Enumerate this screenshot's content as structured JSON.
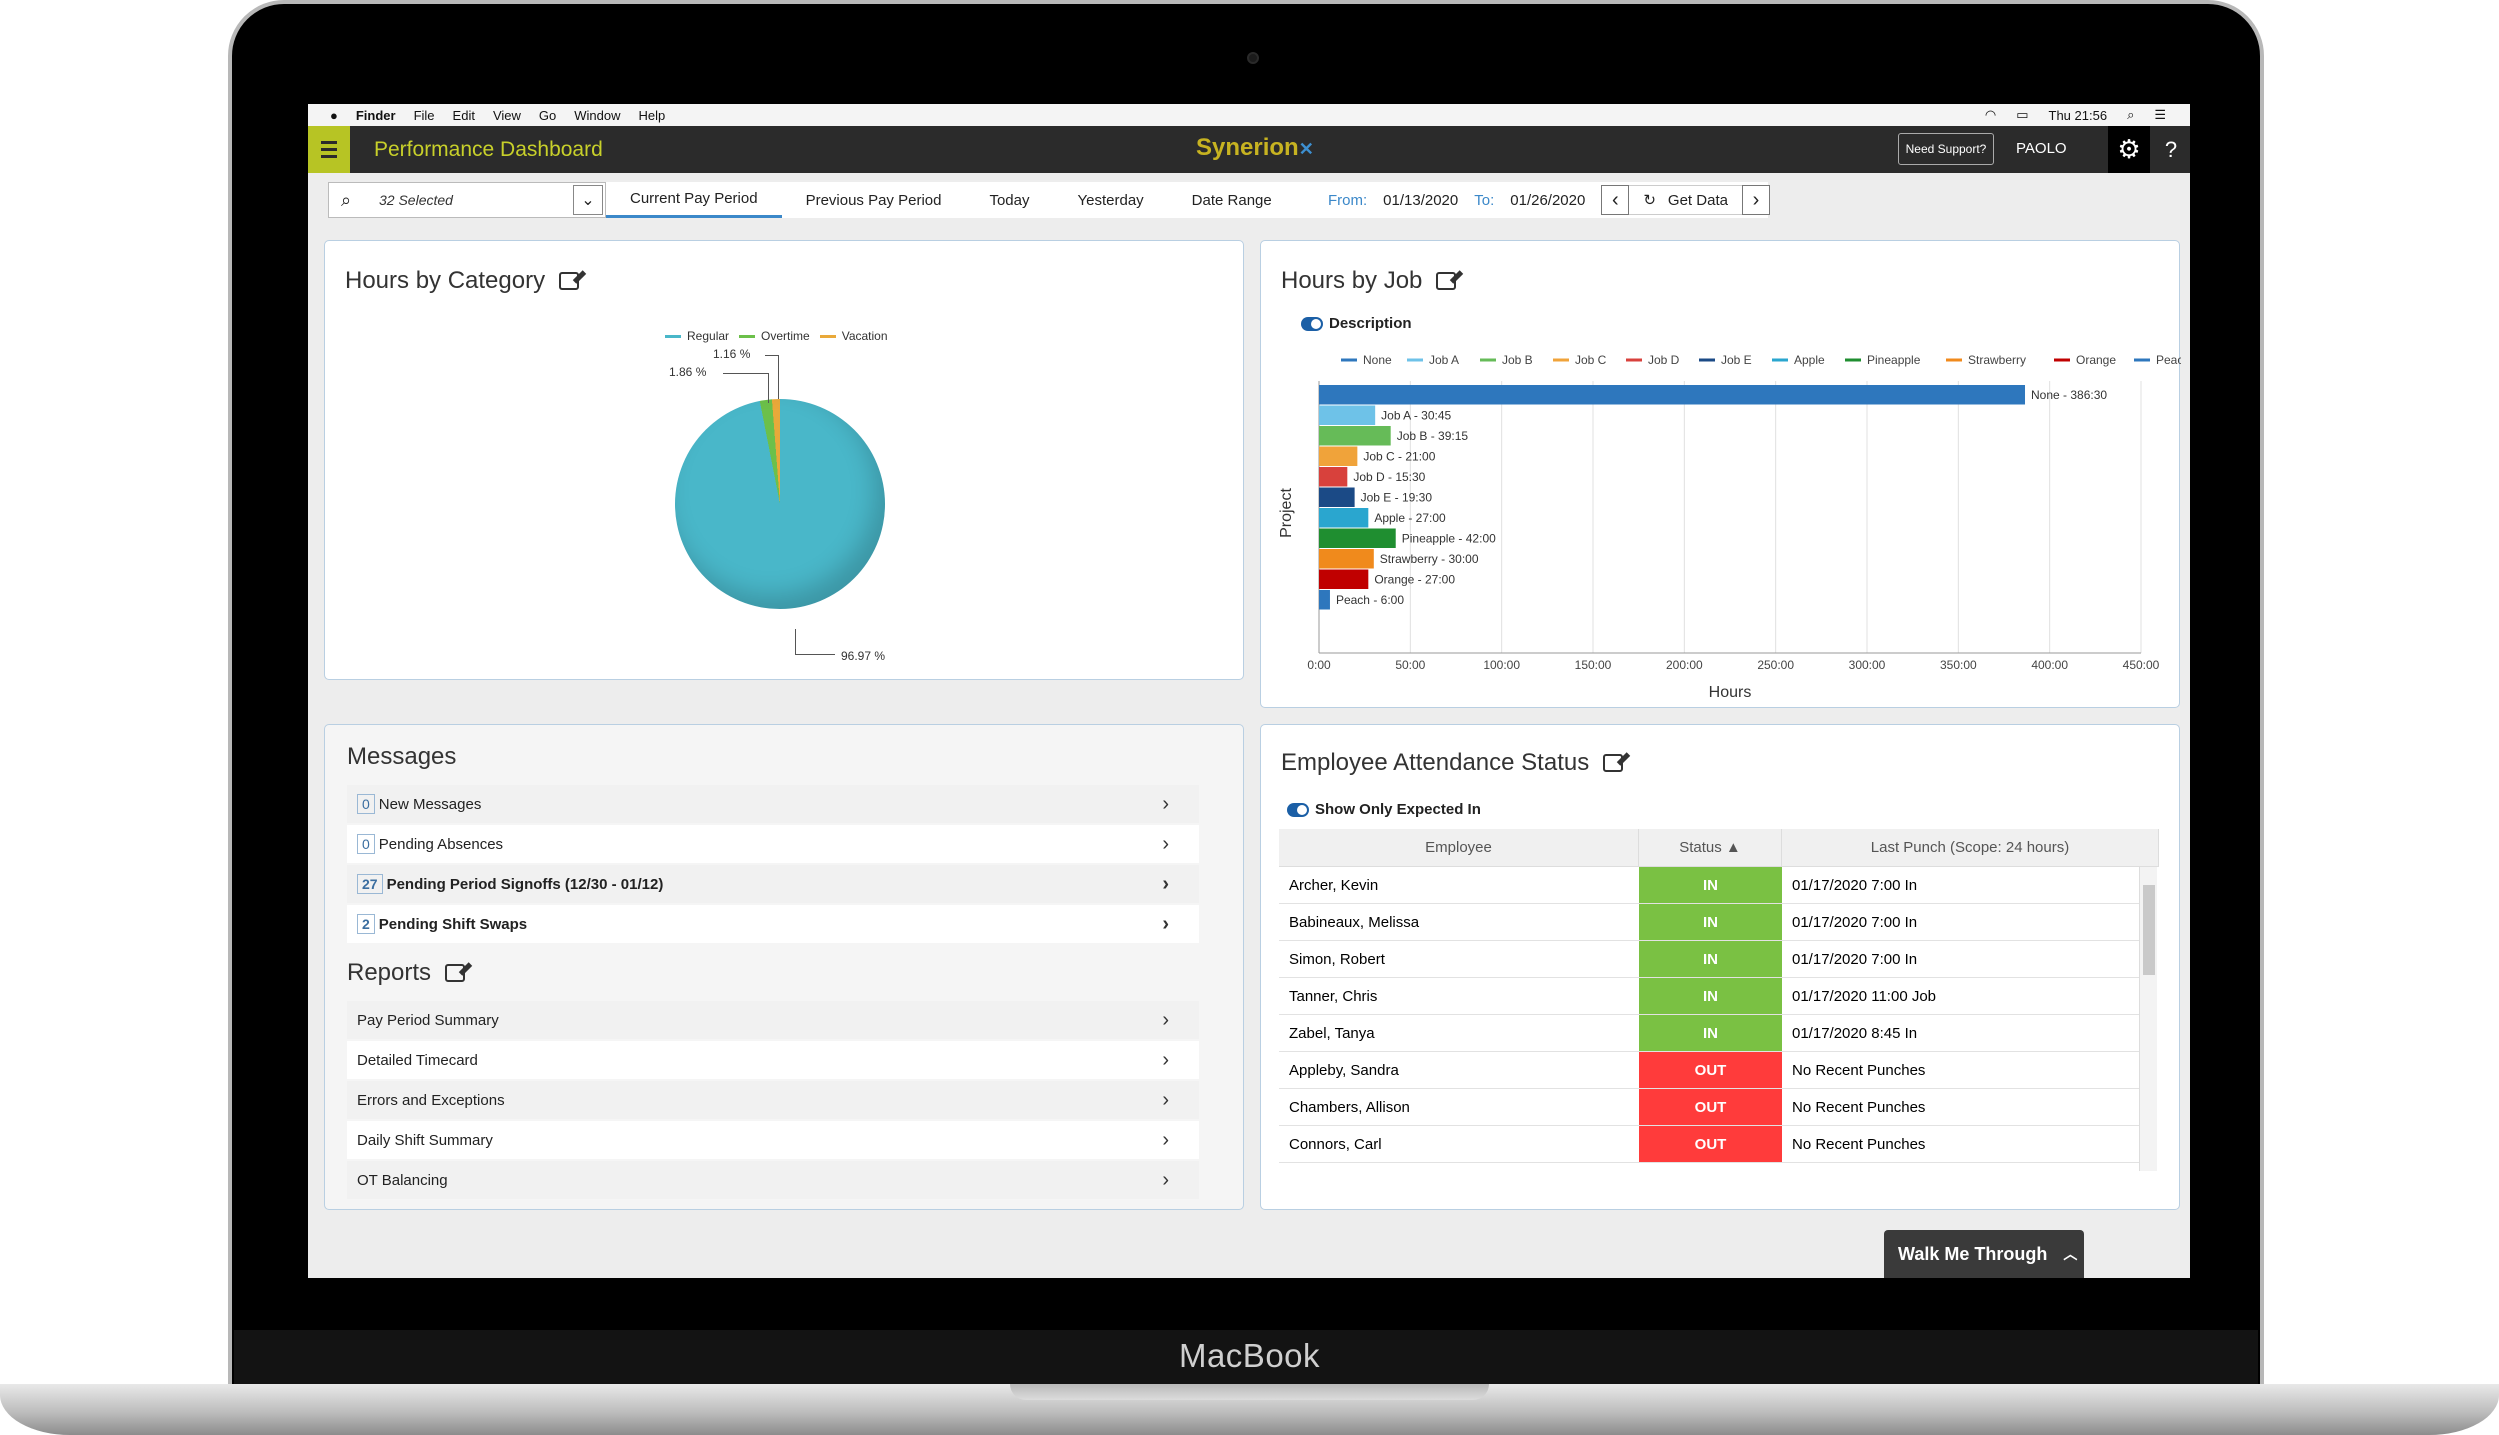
{
  "device": {
    "brand": "MacBook"
  },
  "mac_menu": {
    "apple": "",
    "items": [
      "Finder",
      "File",
      "Edit",
      "View",
      "Go",
      "Window",
      "Help"
    ],
    "clock": "Thu 21:56"
  },
  "app": {
    "title": "Performance Dashboard",
    "logo": "Synerion",
    "support": "Need Support?",
    "user": "PAOLO",
    "help": "?"
  },
  "filter": {
    "selected": "32 Selected",
    "tabs": [
      "Current Pay Period",
      "Previous Pay Period",
      "Today",
      "Yesterday",
      "Date Range"
    ],
    "from_label": "From:",
    "from": "01/13/2020",
    "to_label": "To:",
    "to": "01/26/2020",
    "get_data": "Get Data"
  },
  "hours_by_category": {
    "title": "Hours by Category",
    "legend": [
      {
        "name": "Regular",
        "color": "#49b7c9"
      },
      {
        "name": "Overtime",
        "color": "#6cc04a"
      },
      {
        "name": "Vacation",
        "color": "#e9a93a"
      }
    ],
    "labels": {
      "overtime": "1.16 %",
      "vacation": "1.86 %",
      "regular": "96.97 %"
    }
  },
  "hours_by_job": {
    "title": "Hours by Job",
    "toggle_label": "Description",
    "y_label": "Project",
    "x_label": "Hours"
  },
  "chart_data": {
    "type": "bar",
    "orientation": "horizontal",
    "categories": [
      "None",
      "Job A",
      "Job B",
      "Job C",
      "Job D",
      "Job E",
      "Apple",
      "Pineapple",
      "Strawberry",
      "Orange",
      "Peach"
    ],
    "values": [
      386.5,
      30.75,
      39.25,
      21,
      15.5,
      19.5,
      27,
      42,
      30,
      27,
      6
    ],
    "data_labels": [
      "None - 386:30",
      "Job A - 30:45",
      "Job B - 39:15",
      "Job C - 21:00",
      "Job D - 15:30",
      "Job E - 19:30",
      "Apple - 27:00",
      "Pineapple - 42:00",
      "Strawberry - 30:00",
      "Orange - 27:00",
      "Peach - 6:00"
    ],
    "colors": [
      "#2e77bd",
      "#6ec2e8",
      "#66bb58",
      "#f0a33a",
      "#d8413c",
      "#1b4a86",
      "#2aa6cf",
      "#1f8e30",
      "#f08a1c",
      "#c00000",
      "#2e77bd"
    ],
    "xticks": [
      "0:00",
      "50:00",
      "100:00",
      "150:00",
      "200:00",
      "250:00",
      "300:00",
      "350:00",
      "400:00",
      "450:00"
    ],
    "xlim": [
      0,
      450
    ],
    "xlabel": "Hours",
    "ylabel": "Project",
    "legend_position": "top",
    "grid": true
  },
  "messages": {
    "title": "Messages",
    "items": [
      {
        "count": "0",
        "label": "New Messages"
      },
      {
        "count": "0",
        "label": "Pending Absences"
      },
      {
        "count": "27",
        "label": "Pending Period Signoffs (12/30 - 01/12)"
      },
      {
        "count": "2",
        "label": "Pending Shift Swaps"
      }
    ]
  },
  "reports": {
    "title": "Reports",
    "items": [
      "Pay Period Summary",
      "Detailed Timecard",
      "Errors and Exceptions",
      "Daily Shift Summary",
      "OT Balancing"
    ]
  },
  "attendance": {
    "title": "Employee Attendance Status",
    "toggle_label": "Show Only Expected In",
    "columns": [
      "Employee",
      "Status ▲",
      "Last Punch (Scope: 24 hours)"
    ],
    "rows": [
      {
        "employee": "Archer, Kevin",
        "status": "IN",
        "last": "01/17/2020 7:00 In"
      },
      {
        "employee": "Babineaux, Melissa",
        "status": "IN",
        "last": "01/17/2020 7:00 In"
      },
      {
        "employee": "Simon, Robert",
        "status": "IN",
        "last": "01/17/2020 7:00 In"
      },
      {
        "employee": "Tanner, Chris",
        "status": "IN",
        "last": "01/17/2020 11:00 Job"
      },
      {
        "employee": "Zabel, Tanya",
        "status": "IN",
        "last": "01/17/2020 8:45 In"
      },
      {
        "employee": "Appleby, Sandra",
        "status": "OUT",
        "last": "No Recent Punches"
      },
      {
        "employee": "Chambers, Allison",
        "status": "OUT",
        "last": "No Recent Punches"
      },
      {
        "employee": "Connors, Carl",
        "status": "OUT",
        "last": "No Recent Punches"
      }
    ]
  },
  "walkme": {
    "label": "Walk Me Through"
  }
}
